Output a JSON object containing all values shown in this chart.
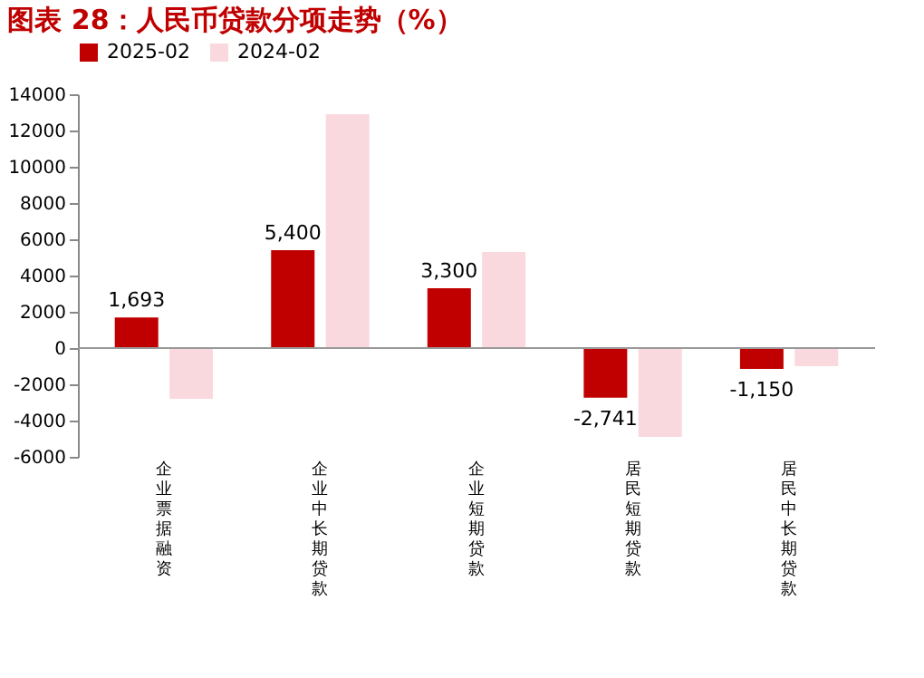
{
  "chart_data": {
    "type": "bar",
    "title": "图表 28：人民币贷款分项走势（%）",
    "categories": [
      "企业票据融资",
      "企业中长期贷款",
      "企业短期贷款",
      "居民短期贷款",
      "居民中长期贷款"
    ],
    "series": [
      {
        "name": "2025-02",
        "color": "#c00000",
        "values": [
          1693,
          5400,
          3300,
          -2741,
          -1150
        ],
        "value_labels": [
          "1,693",
          "5,400",
          "3,300",
          "-2,741",
          "-1,150"
        ]
      },
      {
        "name": "2024-02",
        "color": "#f9d9de",
        "values": [
          -2800,
          12900,
          5300,
          -4900,
          -1000
        ]
      }
    ],
    "ylim": [
      -6000,
      14000
    ],
    "yticks": [
      -6000,
      -4000,
      -2000,
      0,
      2000,
      4000,
      6000,
      8000,
      10000,
      12000,
      14000
    ],
    "ref_lines": [
      {
        "axis": "y",
        "value": 0,
        "color": "#999999"
      }
    ],
    "grid": false,
    "legend": "top"
  }
}
